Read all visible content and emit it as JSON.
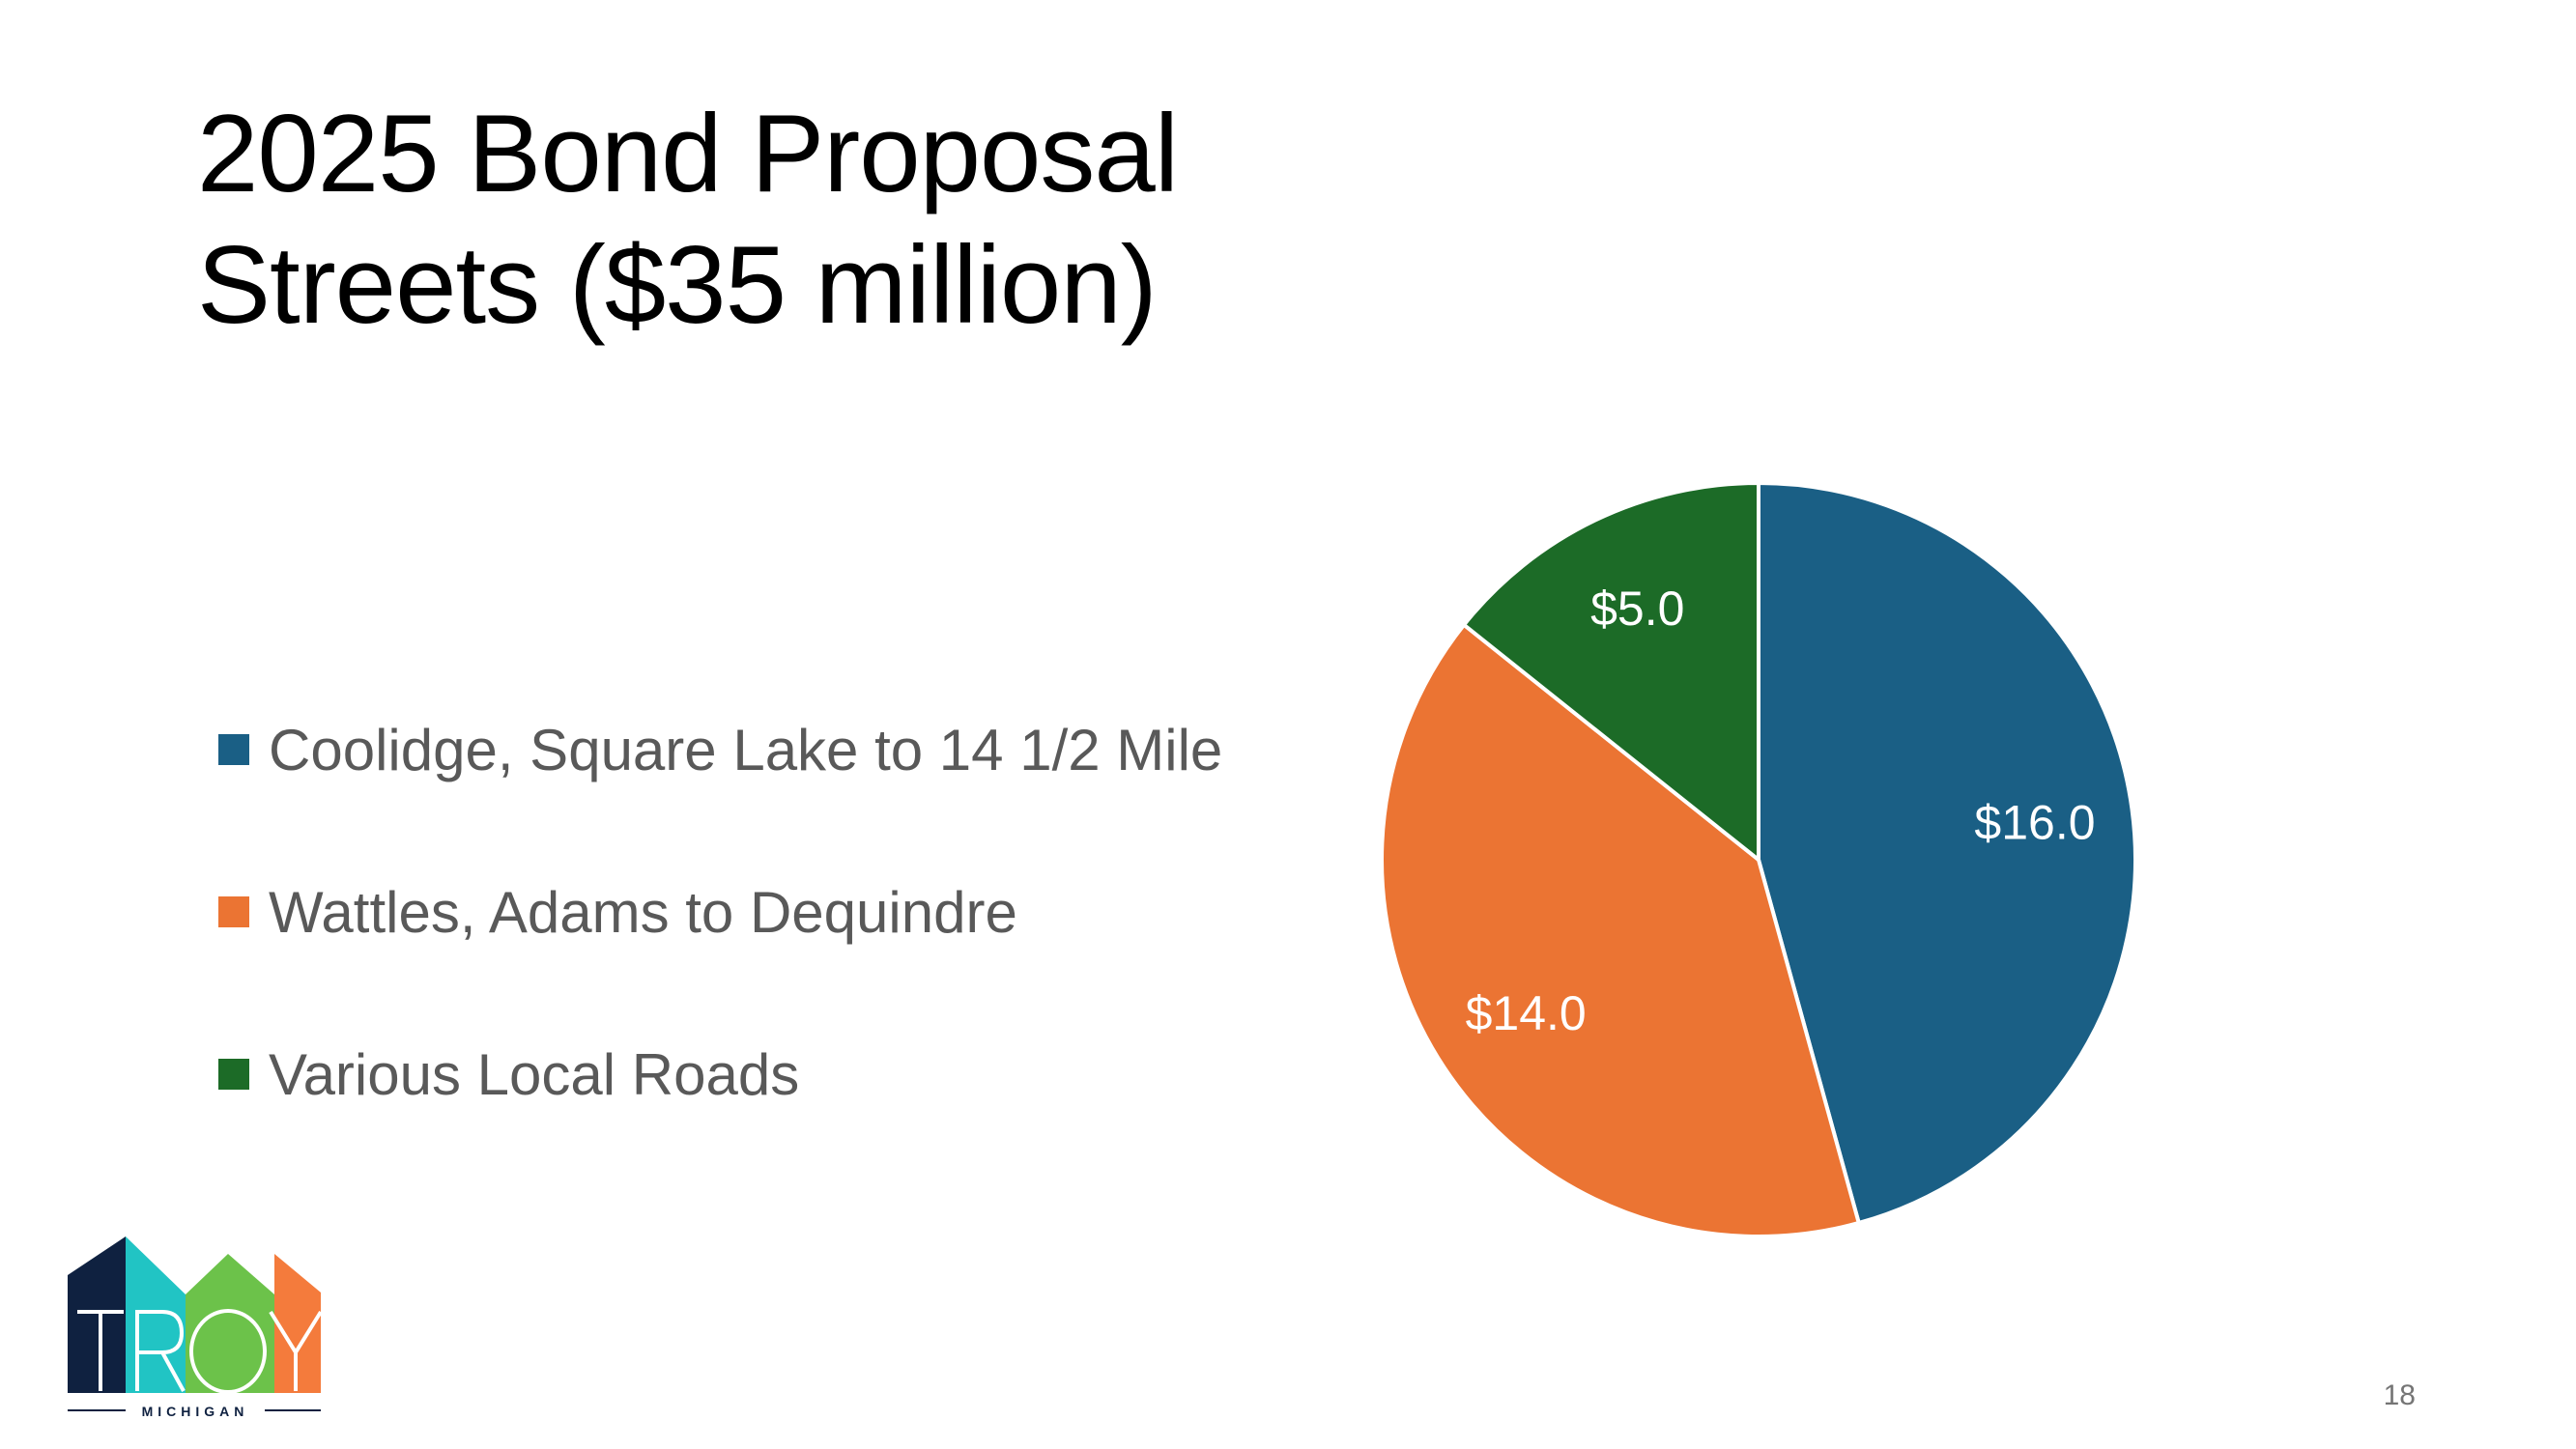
{
  "slide": {
    "title_line1": "2025 Bond Proposal",
    "title_line2": "Streets ($35 million)",
    "page_number": "18"
  },
  "logo": {
    "wordmark": "TROY",
    "subtitle": "MICHIGAN",
    "colors": [
      "#0f2140",
      "#21c4c4",
      "#6cc24a",
      "#f47b3c"
    ]
  },
  "chart_data": {
    "type": "pie",
    "title": "",
    "categories": [
      "Coolidge, Square Lake to 14 1/2 Mile",
      "Wattles, Adams to Dequindre",
      "Various Local Roads"
    ],
    "values": [
      16.0,
      14.0,
      5.0
    ],
    "data_labels": [
      "$16.0",
      "$14.0",
      "$5.0"
    ],
    "colors": [
      "#1a5f85",
      "#eb7433",
      "#1c6b27"
    ],
    "start_angle": "12 o'clock",
    "direction": "clockwise",
    "legend_position": "left"
  }
}
